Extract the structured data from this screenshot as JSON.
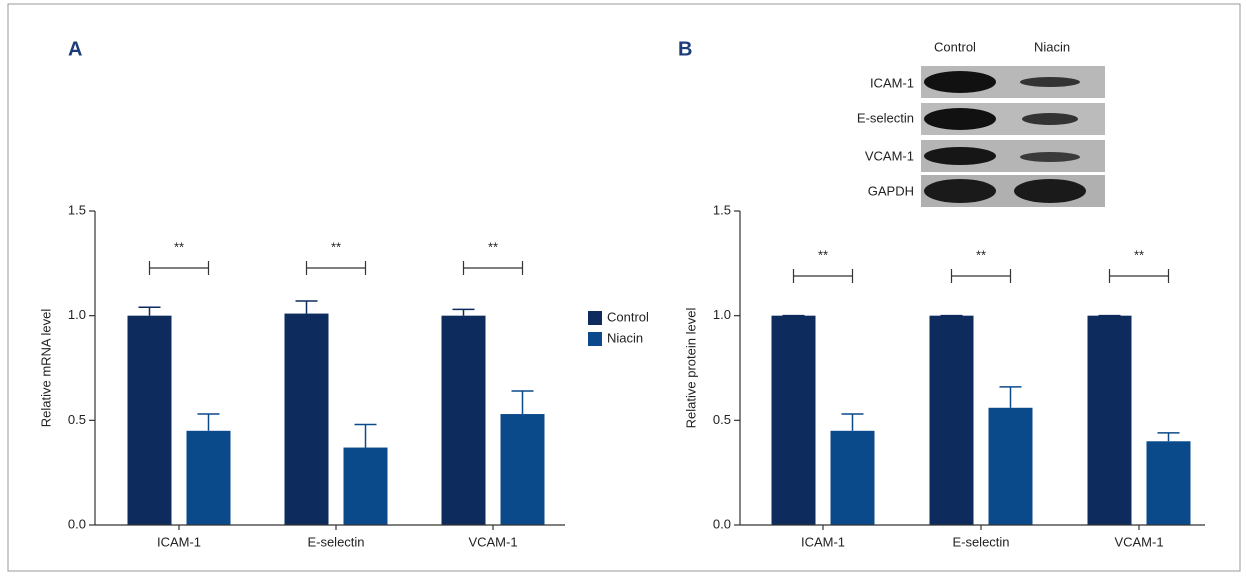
{
  "chart_data": [
    {
      "type": "bar",
      "panel": "A",
      "ylabel": "Relative mRNA level",
      "categories": [
        "ICAM-1",
        "E-selectin",
        "VCAM-1"
      ],
      "series": [
        {
          "name": "Control",
          "color": "#0d2b5c",
          "values": [
            1.0,
            1.01,
            1.0
          ],
          "errors": [
            0.04,
            0.06,
            0.03
          ]
        },
        {
          "name": "Niacin",
          "color": "#0b4a8a",
          "values": [
            0.45,
            0.37,
            0.53
          ],
          "errors": [
            0.08,
            0.11,
            0.11
          ]
        }
      ],
      "annotations": [
        "**",
        "**",
        "**"
      ],
      "ylim": [
        0,
        1.5
      ],
      "yticks": [
        {
          "value": 0,
          "label": "0.0"
        },
        0.5,
        {
          "value": 1,
          "label": "1.0"
        },
        1.5
      ]
    },
    {
      "type": "bar",
      "panel": "B",
      "ylabel": "Relative protein level",
      "categories": [
        "ICAM-1",
        "E-selectin",
        "VCAM-1"
      ],
      "series": [
        {
          "color": "#0d2b5c",
          "values": [
            1.0,
            1.0,
            1.0
          ],
          "errors": [
            0,
            0,
            0
          ]
        },
        {
          "color": "#0b4a8a",
          "values": [
            0.45,
            0.56,
            0.4
          ],
          "errors": [
            0.08,
            0.1,
            0.04
          ]
        }
      ],
      "annotations": [
        "**",
        "**",
        "**"
      ],
      "ylim": [
        0,
        1.5
      ],
      "yticks": [
        {
          "value": 0,
          "label": "0.0"
        },
        0.5,
        {
          "value": 1,
          "label": "1.0"
        },
        1.5
      ]
    }
  ],
  "blot": {
    "columns": [
      "Control",
      "Niacin"
    ],
    "rows": [
      "ICAM-1",
      "E-selectin",
      "VCAM-1",
      "GAPDH"
    ]
  }
}
